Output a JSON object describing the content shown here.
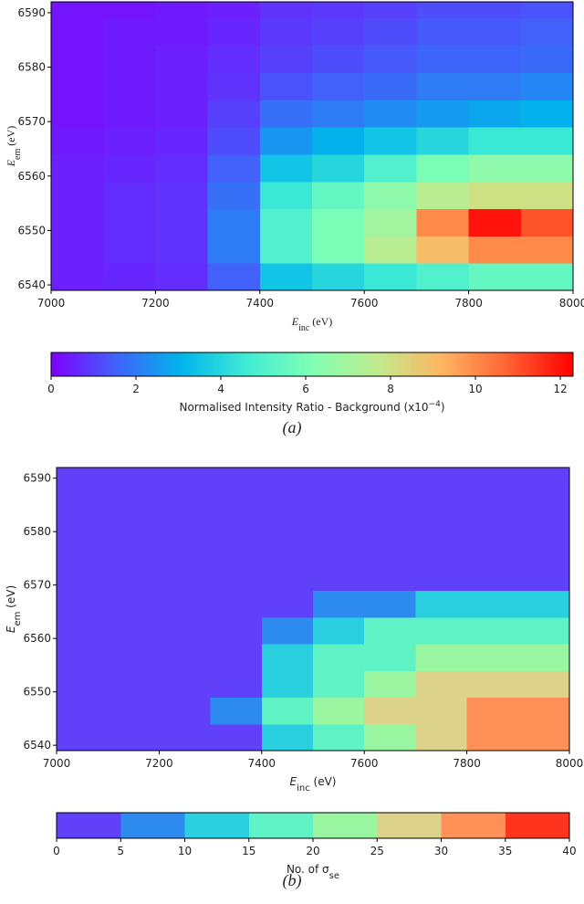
{
  "chart_data": [
    {
      "type": "heatmap",
      "xlabel": {
        "main": "E",
        "sub": "inc",
        "unit": " (eV)"
      },
      "ylabel": {
        "main": "E",
        "sub": "em",
        "unit": " (eV)"
      },
      "xlim": [
        7000,
        8000
      ],
      "ylim": [
        6539,
        6592
      ],
      "xticks": [
        7000,
        7200,
        7400,
        7600,
        7800,
        8000
      ],
      "yticks": [
        6540,
        6550,
        6560,
        6570,
        6580,
        6590
      ],
      "xbins": [
        7000,
        7100,
        7200,
        7300,
        7400,
        7500,
        7600,
        7700,
        7800,
        7900,
        8000
      ],
      "ybins": [
        6539,
        6544,
        6549,
        6554,
        6559,
        6564,
        6569,
        6574,
        6579,
        6584,
        6589,
        6592
      ],
      "z": [
        [
          0.5,
          0.6,
          0.7,
          1.5,
          3.5,
          4,
          4.5,
          5,
          5.5,
          5.5
        ],
        [
          0.5,
          0.7,
          0.8,
          2,
          5,
          6,
          7.5,
          9,
          10,
          10
        ],
        [
          0.5,
          0.7,
          0.8,
          2,
          5,
          6,
          7,
          10,
          12,
          11
        ],
        [
          0.5,
          0.7,
          0.8,
          1.8,
          4.5,
          5.5,
          6.5,
          7.5,
          8,
          8
        ],
        [
          0.5,
          0.6,
          0.7,
          1.5,
          3.5,
          4,
          5,
          6,
          6.5,
          6.5
        ],
        [
          0.4,
          0.5,
          0.6,
          1.2,
          2.5,
          3,
          3.5,
          4,
          4.5,
          4.5
        ],
        [
          0.3,
          0.4,
          0.5,
          1,
          1.8,
          2,
          2.3,
          2.6,
          2.8,
          3
        ],
        [
          0.3,
          0.4,
          0.5,
          0.8,
          1.3,
          1.5,
          1.7,
          2,
          2,
          2.2
        ],
        [
          0.3,
          0.4,
          0.5,
          0.7,
          1,
          1.2,
          1.4,
          1.6,
          1.6,
          1.7
        ],
        [
          0.3,
          0.4,
          0.4,
          0.6,
          0.9,
          1,
          1.2,
          1.4,
          1.4,
          1.5
        ],
        [
          0.3,
          0.3,
          0.4,
          0.5,
          0.8,
          0.9,
          1,
          1.2,
          1.2,
          1.3
        ]
      ],
      "colorbar": {
        "label": {
          "main": "Normalised Intensity Ratio - Background (x10",
          "sup": "−4",
          "end": ")"
        },
        "lim": [
          0,
          12.3
        ],
        "ticks": [
          0,
          2,
          4,
          6,
          8,
          10,
          12
        ],
        "colors": [
          "#8000ff",
          "#4062fa",
          "#00b5eb",
          "#40ecd4",
          "#80ffb4",
          "#c0eb8d",
          "#ffb462",
          "#ff6232",
          "#ff0000"
        ]
      },
      "caption": "(a)"
    },
    {
      "type": "heatmap",
      "xlabel": {
        "main": "E",
        "sub": "inc",
        "unit": " (eV)"
      },
      "ylabel": {
        "main": "E",
        "sub": "em",
        "unit": " (eV)"
      },
      "xlim": [
        7000,
        8000
      ],
      "ylim": [
        6539,
        6592
      ],
      "xticks": [
        7000,
        7200,
        7400,
        7600,
        7800,
        8000
      ],
      "yticks": [
        6540,
        6550,
        6560,
        6570,
        6580,
        6590
      ],
      "xbins": [
        7000,
        7100,
        7200,
        7300,
        7400,
        7500,
        7600,
        7700,
        7800,
        7900,
        8000
      ],
      "ybins": [
        6539,
        6544,
        6549,
        6554,
        6559,
        6564,
        6569,
        6574,
        6579,
        6584,
        6589,
        6592
      ],
      "z": [
        [
          0,
          0,
          0,
          2,
          12,
          18,
          22,
          27,
          31,
          32
        ],
        [
          0,
          0,
          0,
          6,
          17,
          22,
          26,
          29,
          31,
          32
        ],
        [
          0,
          0,
          0,
          3,
          14,
          19,
          22,
          26,
          27,
          27
        ],
        [
          0,
          0,
          0,
          1,
          11,
          16,
          19,
          21,
          22,
          22
        ],
        [
          0,
          0,
          0,
          0,
          6,
          12,
          15,
          17,
          18,
          18
        ],
        [
          0,
          0,
          0,
          0,
          1,
          6,
          9,
          11,
          12,
          12
        ],
        [
          0,
          0,
          0,
          0,
          0,
          0,
          2,
          4,
          3,
          4
        ],
        [
          0,
          0,
          0,
          0,
          0,
          0,
          0,
          0,
          0,
          0
        ],
        [
          0,
          0,
          0,
          0,
          0,
          0,
          0,
          0,
          0,
          0
        ],
        [
          0,
          0,
          0,
          0,
          0,
          0,
          0,
          0,
          0,
          0
        ],
        [
          0,
          0,
          0,
          0,
          0,
          0,
          0,
          0,
          0,
          0
        ]
      ],
      "colorbar": {
        "label": {
          "main": "No. of σ",
          "sub": "se"
        },
        "lim": [
          0,
          40
        ],
        "ticks": [
          0,
          5,
          10,
          15,
          20,
          25,
          30,
          35,
          40
        ],
        "levels": [
          0,
          5,
          10,
          15,
          20,
          25,
          30,
          35,
          40
        ],
        "colors": [
          "#6040f8",
          "#2d8bf0",
          "#2ad0e0",
          "#5ef2c4",
          "#9af5a0",
          "#dcd28a",
          "#ff9058",
          "#ff3520"
        ]
      },
      "caption": "(b)"
    }
  ]
}
